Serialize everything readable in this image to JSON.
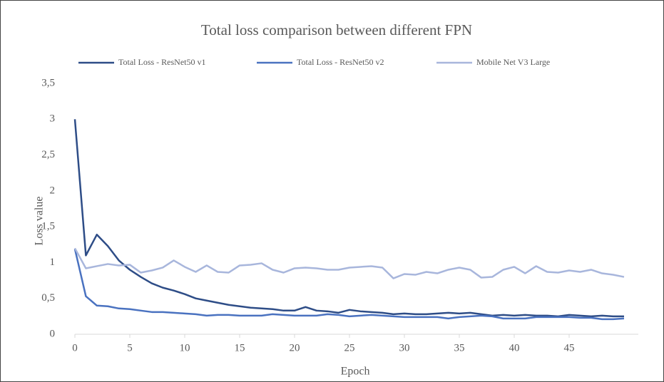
{
  "chart_data": {
    "type": "line",
    "title": "Total loss comparison between different FPN",
    "x_label": "Epoch",
    "y_label": "Loss value",
    "x": [
      0,
      1,
      2,
      3,
      4,
      5,
      6,
      7,
      8,
      9,
      10,
      11,
      12,
      13,
      14,
      15,
      16,
      17,
      18,
      19,
      20,
      21,
      22,
      23,
      24,
      25,
      26,
      27,
      28,
      29,
      30,
      31,
      32,
      33,
      34,
      35,
      36,
      37,
      38,
      39,
      40,
      41,
      42,
      43,
      44,
      45,
      46,
      47,
      48,
      49,
      50
    ],
    "series": [
      {
        "name": "Total Loss - ResNet50 v1",
        "color": "#2e4d87",
        "values": [
          3.0,
          1.1,
          1.39,
          1.23,
          1.03,
          0.9,
          0.8,
          0.71,
          0.65,
          0.61,
          0.56,
          0.5,
          0.47,
          0.44,
          0.41,
          0.39,
          0.37,
          0.36,
          0.35,
          0.33,
          0.33,
          0.38,
          0.33,
          0.32,
          0.3,
          0.34,
          0.32,
          0.31,
          0.3,
          0.28,
          0.29,
          0.28,
          0.28,
          0.29,
          0.3,
          0.29,
          0.3,
          0.28,
          0.26,
          0.27,
          0.26,
          0.27,
          0.26,
          0.26,
          0.25,
          0.27,
          0.26,
          0.25,
          0.26,
          0.25,
          0.25
        ]
      },
      {
        "name": "Total Loss - ResNet50 v2",
        "color": "#4a72c0",
        "values": [
          1.19,
          0.53,
          0.4,
          0.39,
          0.36,
          0.35,
          0.33,
          0.31,
          0.31,
          0.3,
          0.29,
          0.28,
          0.26,
          0.27,
          0.27,
          0.26,
          0.26,
          0.26,
          0.28,
          0.27,
          0.26,
          0.26,
          0.26,
          0.28,
          0.27,
          0.25,
          0.26,
          0.27,
          0.26,
          0.25,
          0.24,
          0.24,
          0.24,
          0.24,
          0.22,
          0.24,
          0.25,
          0.26,
          0.25,
          0.22,
          0.22,
          0.22,
          0.24,
          0.24,
          0.24,
          0.24,
          0.23,
          0.23,
          0.21,
          0.21,
          0.22
        ]
      },
      {
        "name": "Mobile Net V3 Large",
        "color": "#a8b6dc",
        "values": [
          1.2,
          0.92,
          0.95,
          0.98,
          0.96,
          0.97,
          0.86,
          0.89,
          0.93,
          1.03,
          0.94,
          0.87,
          0.96,
          0.87,
          0.86,
          0.96,
          0.97,
          0.99,
          0.9,
          0.86,
          0.92,
          0.93,
          0.92,
          0.9,
          0.9,
          0.93,
          0.94,
          0.95,
          0.93,
          0.78,
          0.84,
          0.83,
          0.87,
          0.85,
          0.9,
          0.93,
          0.9,
          0.79,
          0.8,
          0.9,
          0.94,
          0.85,
          0.95,
          0.87,
          0.86,
          0.89,
          0.87,
          0.9,
          0.85,
          0.83,
          0.8
        ]
      }
    ],
    "xlim": [
      0,
      51.3
    ],
    "xticks": [
      0,
      5,
      10,
      15,
      20,
      25,
      30,
      35,
      40,
      45
    ],
    "ylim": [
      0,
      3.5
    ],
    "yticks": [
      0,
      {
        "value": 0.5,
        "label": "0,5"
      },
      1,
      {
        "value": 1.5,
        "label": "1,5"
      },
      2,
      {
        "value": 2.5,
        "label": "2,5"
      },
      3,
      {
        "value": 3.5,
        "label": "3,5"
      }
    ],
    "legend": "top",
    "grid": false
  }
}
